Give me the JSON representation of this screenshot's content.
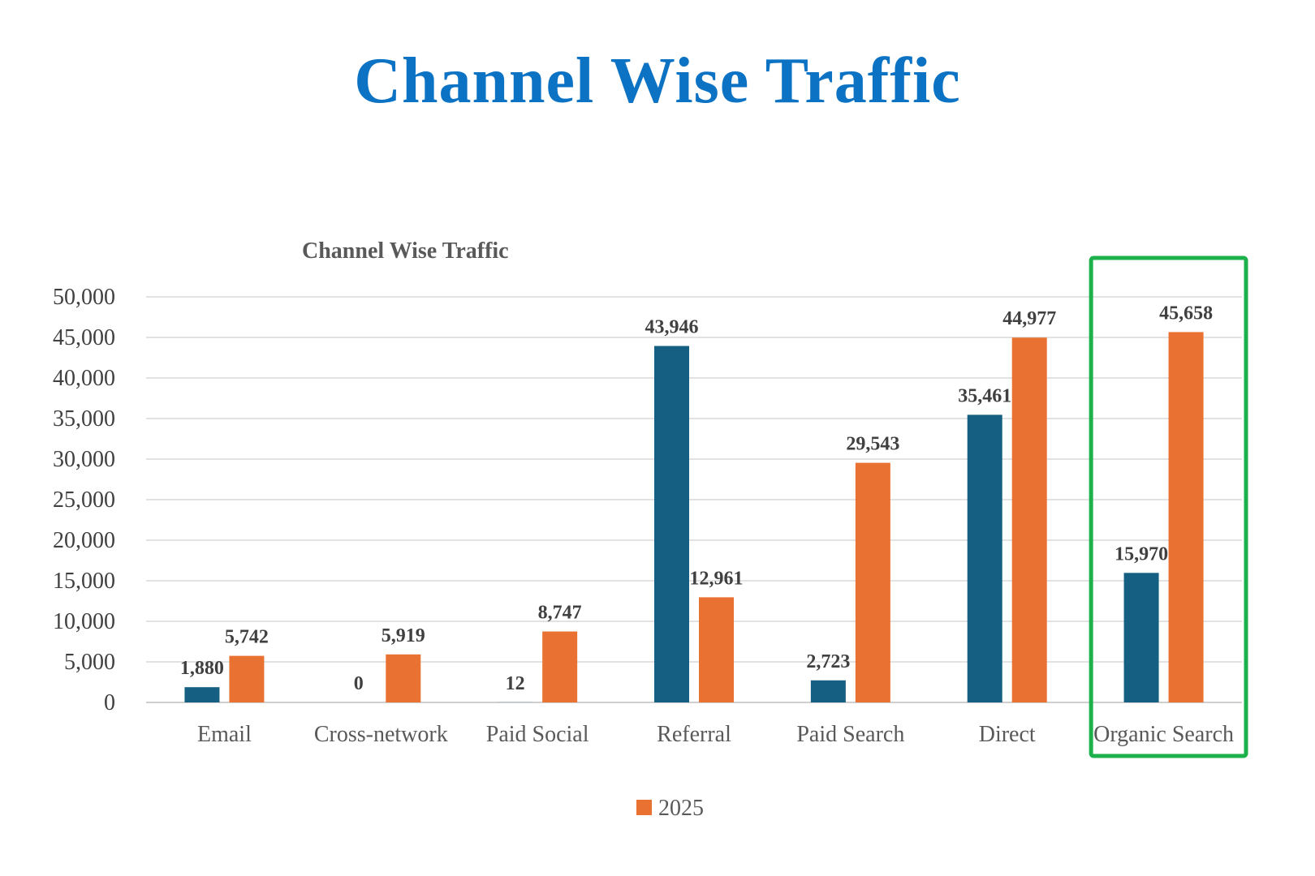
{
  "slide": {
    "title": "Channel Wise Traffic"
  },
  "chart_data": {
    "type": "bar",
    "title": "Channel Wise Traffic",
    "categories": [
      "Email",
      "Cross-network",
      "Paid Social",
      "Referral",
      "Paid Search",
      "Direct",
      "Organic Search"
    ],
    "series": [
      {
        "name": "",
        "color": "#155F83",
        "values": [
          1880,
          0,
          12,
          43946,
          2723,
          35461,
          15970
        ]
      },
      {
        "name": "2025",
        "color": "#E97132",
        "values": [
          5742,
          5919,
          8747,
          12961,
          29543,
          44977,
          45658
        ]
      }
    ],
    "ylim": [
      0,
      50000
    ],
    "yticks": [
      0,
      5000,
      10000,
      15000,
      20000,
      25000,
      30000,
      35000,
      40000,
      45000,
      50000
    ],
    "ytick_labels": [
      "0",
      "5,000",
      "10,000",
      "15,000",
      "20,000",
      "25,000",
      "30,000",
      "35,000",
      "40,000",
      "45,000",
      "50,000"
    ],
    "data_labels": [
      [
        "1,880",
        "0",
        "12",
        "43,946",
        "2,723",
        "35,461",
        "15,970"
      ],
      [
        "5,742",
        "5,919",
        "8,747",
        "12,961",
        "29,543",
        "44,977",
        "45,658"
      ]
    ],
    "xlabel": "",
    "ylabel": "",
    "grid": true,
    "legend": {
      "position": "bottom",
      "entries": [
        "2025"
      ]
    },
    "highlight": {
      "category": "Organic Search",
      "color": "#1DB14B"
    }
  }
}
